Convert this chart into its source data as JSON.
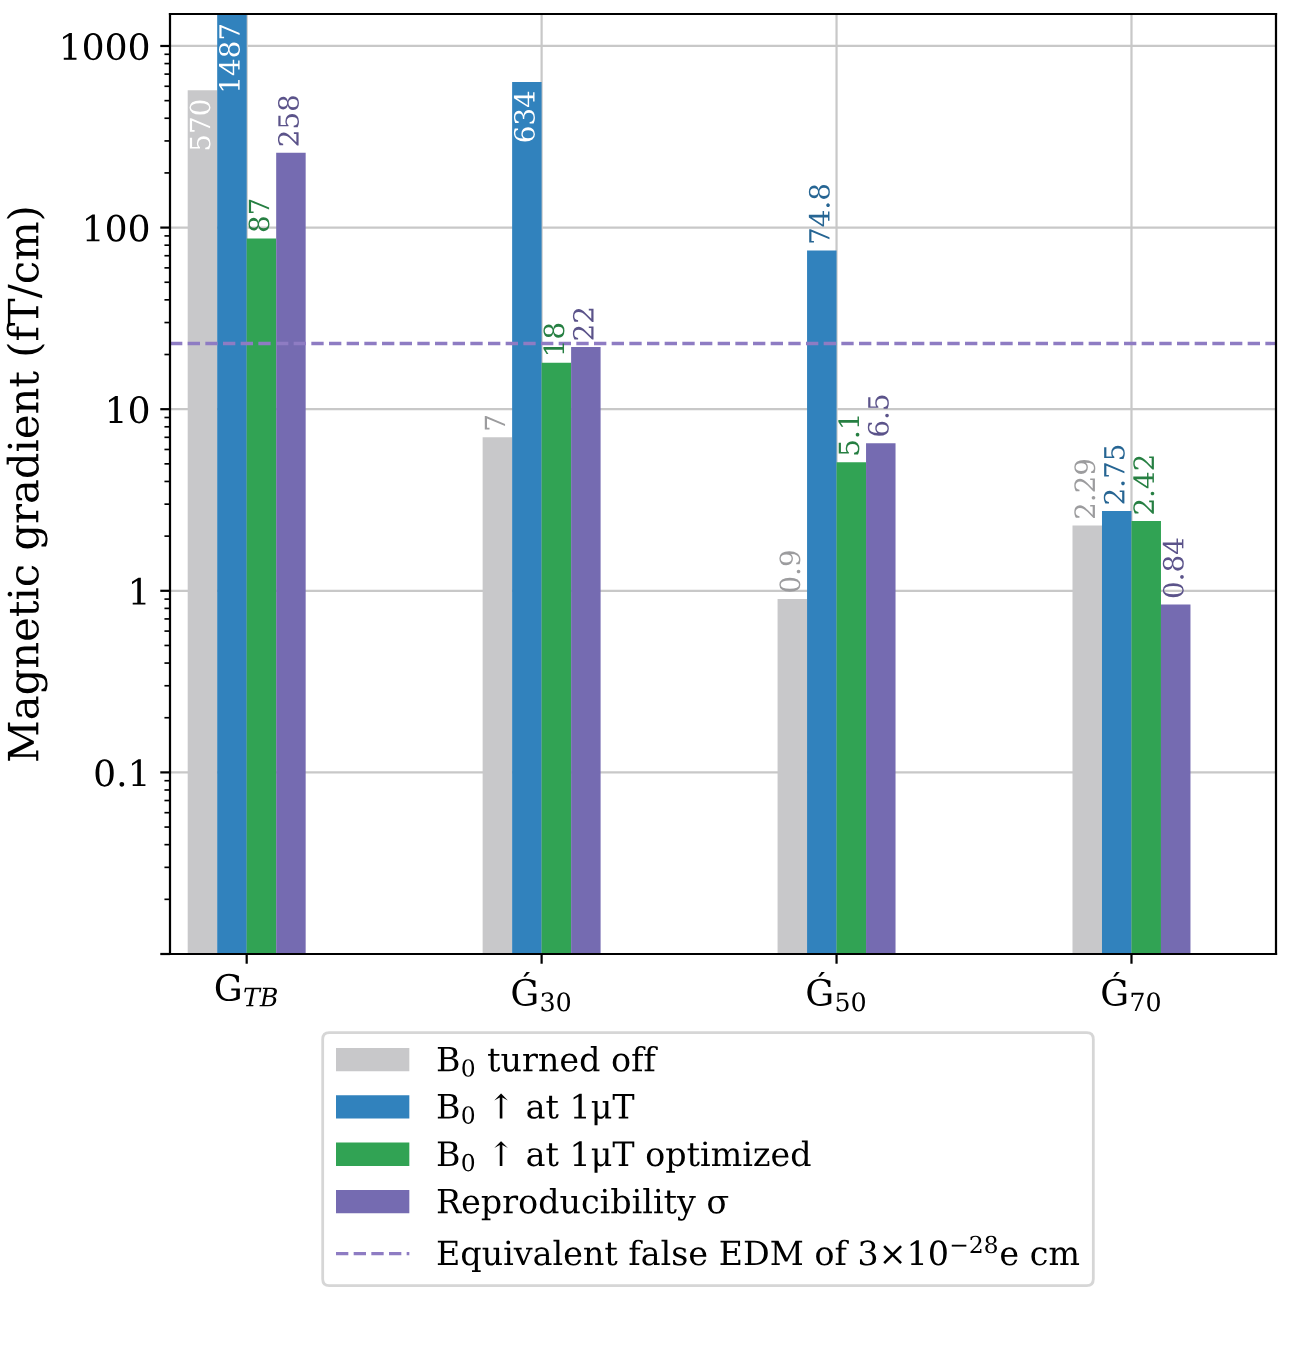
{
  "chart_data": {
    "type": "bar",
    "ylabel": "Magnetic gradient (fT/cm)",
    "categories": [
      "G$_{TB}$",
      "Ǵ$_{30}$",
      "Ǵ$_{50}$",
      "Ǵ$_{70}$"
    ],
    "series": [
      {
        "name": "B$_{0}$ turned off",
        "color": "#c8c8ca",
        "values": [
          570,
          7,
          0.9,
          2.29
        ]
      },
      {
        "name": "B$_{0}$ ↑ at 1μT",
        "color": "#3182bd",
        "values": [
          1487,
          634,
          74.8,
          2.75
        ]
      },
      {
        "name": "B$_{0}$ ↑ at 1μT optimized",
        "color": "#31a354",
        "values": [
          87,
          18,
          5.1,
          2.42
        ]
      },
      {
        "name": "Reproducibility σ",
        "color": "#756bb1",
        "values": [
          258,
          22,
          6.5,
          0.84
        ]
      }
    ],
    "log": "y",
    "ylim": [
      0.01,
      1500
    ],
    "yticks": [
      {
        "value": 0.01,
        "label": null
      },
      0.1,
      1,
      10,
      100,
      1000
    ],
    "ref_lines": [
      {
        "axis": "y",
        "value": 23,
        "label": "Equivalent false EDM of 3×10$^{−28}$e cm",
        "color": "#8e7cc3",
        "line_style": "dashed"
      }
    ],
    "data_labels": true,
    "grid": true,
    "legend": "bottom"
  }
}
